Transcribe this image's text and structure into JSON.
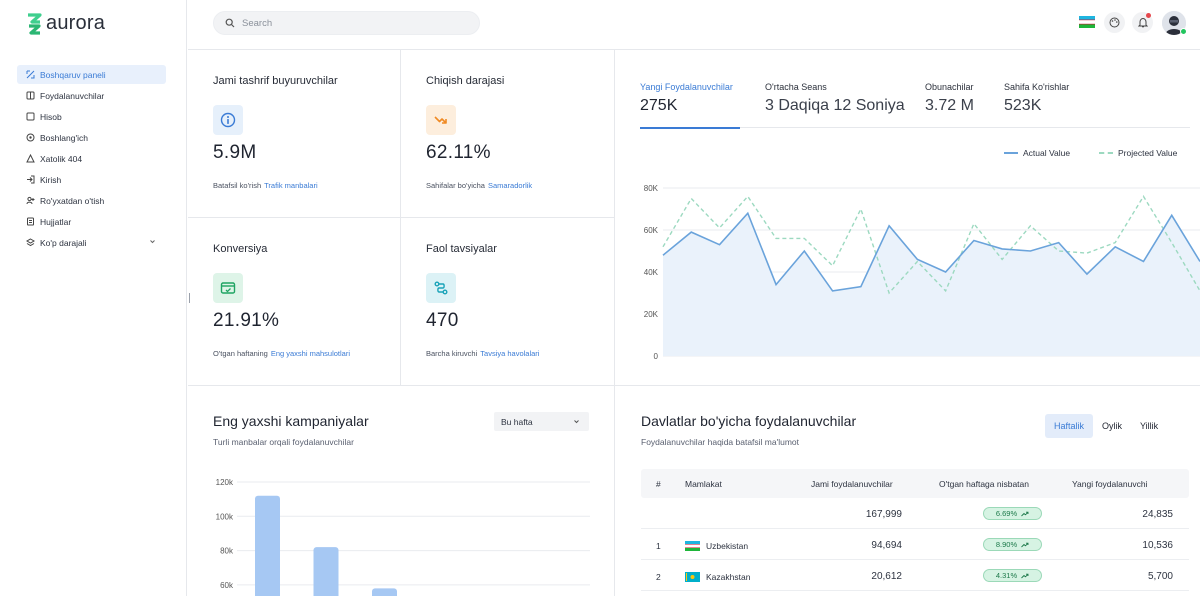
{
  "app": {
    "name": "aurora"
  },
  "sidebar": {
    "items": [
      {
        "label": "Boshqaruv paneli",
        "icon": "dashboard-icon",
        "active": true
      },
      {
        "label": "Foydalanuvchilar",
        "icon": "users-icon"
      },
      {
        "label": "Hisob",
        "icon": "account-icon"
      },
      {
        "label": "Boshlang'ich",
        "icon": "start-icon"
      },
      {
        "label": "Xatolik 404",
        "icon": "warning-icon"
      },
      {
        "label": "Kirish",
        "icon": "login-icon"
      },
      {
        "label": "Ro'yxatdan o'tish",
        "icon": "register-icon"
      },
      {
        "label": "Hujjatlar",
        "icon": "document-icon"
      },
      {
        "label": "Ko'p darajali",
        "icon": "layers-icon"
      }
    ]
  },
  "topbar": {
    "search_placeholder": "Search"
  },
  "stats": [
    {
      "title": "Jami tashrif buyuruvchilar",
      "value": "5.9M",
      "foot": "Batafsil ko'rish",
      "link": "Trafik manbalari",
      "icon": "info-icon",
      "icon_color": "#3a7bd5",
      "icon_bg": "#e6f0fb"
    },
    {
      "title": "Chiqish darajasi",
      "value": "62.11%",
      "foot": "Sahifalar bo'yicha",
      "link": "Samaradorlik",
      "icon": "trend-down-icon",
      "icon_color": "#f08a24",
      "icon_bg": "#fdeedd"
    },
    {
      "title": "Konversiya",
      "value": "21.91%",
      "foot": "O'tgan haftaning",
      "link": "Eng yaxshi mahsulotlari",
      "icon": "payment-card-icon",
      "icon_color": "#1fa463",
      "icon_bg": "#def4e8"
    },
    {
      "title": "Faol tavsiyalar",
      "value": "470",
      "foot": "Barcha kiruvchi",
      "link": "Tavsiya havolalari",
      "icon": "route-icon",
      "icon_color": "#1aa3b8",
      "icon_bg": "#dcf2f6"
    }
  ],
  "metric_tabs": [
    {
      "label": "Yangi Foydalanuvchilar",
      "value": "275K",
      "active": true
    },
    {
      "label": "O'rtacha Seans",
      "value": "3 Daqiqa 12 Soniya"
    },
    {
      "label": "Obunachilar",
      "value": "3.72 M"
    },
    {
      "label": "Sahifa Ko'rishlar",
      "value": "523K"
    }
  ],
  "chart_data": [
    {
      "type": "area",
      "series": [
        {
          "name": "Actual Value",
          "color": "#6aa3db",
          "values": [
            48,
            59,
            53,
            68,
            34,
            50,
            31,
            33,
            62,
            46,
            40,
            55,
            51,
            50,
            54,
            39,
            52,
            45,
            67,
            45
          ]
        },
        {
          "name": "Projected Value",
          "color": "#9cd9c0",
          "values": [
            52,
            75,
            61,
            76,
            56,
            56,
            43,
            70,
            30,
            45,
            31,
            63,
            46,
            62,
            50,
            49,
            54,
            76,
            54,
            31
          ]
        }
      ],
      "ylim": [
        0,
        80000
      ],
      "y_ticks": [
        "0",
        "20K",
        "40K",
        "60K",
        "80K"
      ],
      "grid": true,
      "legend": "top-right"
    },
    {
      "type": "bar",
      "values": [
        112,
        82,
        58
      ],
      "color": "#a6c8f3",
      "y_ticks": [
        "60k",
        "80k",
        "100k",
        "120k"
      ],
      "ylim": [
        60,
        120
      ],
      "grid": true
    }
  ],
  "campaigns": {
    "title": "Eng yaxshi kampaniyalar",
    "subtitle": "Turli manbalar orqali foydalanuvchilar",
    "period": "Bu hafta"
  },
  "countries": {
    "title": "Davlatlar bo'yicha foydalanuvchilar",
    "subtitle": "Foydalanuvchilar haqida batafsil ma'lumot",
    "segments": [
      {
        "label": "Haftalik",
        "active": true
      },
      {
        "label": "Oylik"
      },
      {
        "label": "Yillik"
      }
    ],
    "columns": [
      "#",
      "Mamlakat",
      "Jami foydalanuvchilar",
      "O'tgan haftaga nisbatan",
      "Yangi foydalanuvchi"
    ],
    "rows": [
      {
        "idx": "",
        "country": "",
        "total": "167,999",
        "change": "6.69%",
        "new": "24,835",
        "flag": ""
      },
      {
        "idx": "1",
        "country": "Uzbekistan",
        "total": "94,694",
        "change": "8.90%",
        "new": "10,536",
        "flag": "uz"
      },
      {
        "idx": "2",
        "country": "Kazakhstan",
        "total": "20,612",
        "change": "4.31%",
        "new": "5,700",
        "flag": "kz"
      }
    ]
  }
}
